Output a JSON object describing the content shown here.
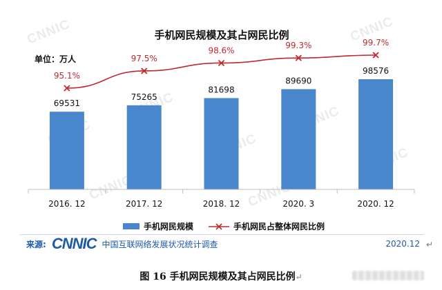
{
  "chart_data": {
    "type": "bar+line",
    "title": "手机网民规模及其占网民比例",
    "unit_label": "单位：万人",
    "categories": [
      "2016. 12",
      "2017. 12",
      "2018. 12",
      "2020. 3",
      "2020. 12"
    ],
    "series": [
      {
        "name": "手机网民规模",
        "type": "bar",
        "color": "#4a86cc",
        "values": [
          69531,
          75265,
          81698,
          89690,
          98576
        ]
      },
      {
        "name": "手机网民占整体网民比例",
        "type": "line",
        "color": "#c0282d",
        "marker": "x",
        "values": [
          95.1,
          97.5,
          98.6,
          99.3,
          99.7
        ],
        "labels": [
          "95.1%",
          "97.5%",
          "98.6%",
          "99.3%",
          "99.7%"
        ]
      }
    ],
    "xlabel": "",
    "ylabel": "",
    "ylim": [
      0,
      110000
    ],
    "grid": false,
    "legend_position": "bottom"
  },
  "footer": {
    "source_label": "来源:",
    "logo": "CNNIC",
    "survey_name": "中国互联网络发展状况统计调查",
    "date": "2020.12"
  },
  "caption": {
    "text": "图  16   手机网民规模及其占网民比例",
    "return_mark": "↵"
  },
  "watermark_text": "CNNIC"
}
